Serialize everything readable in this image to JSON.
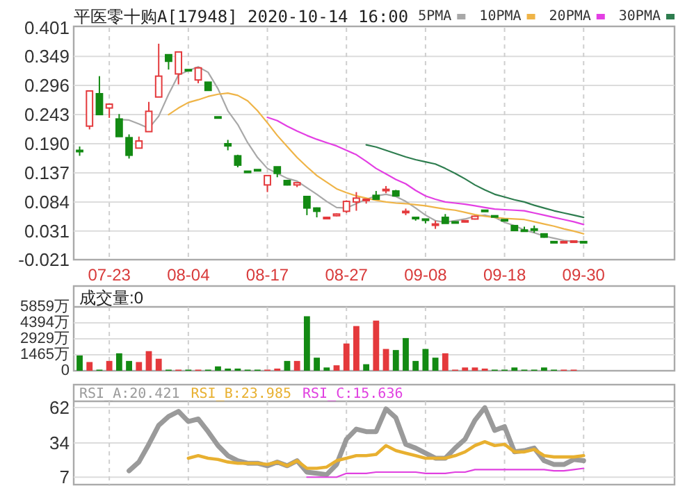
{
  "chart_data": [
    {
      "type": "candlestick",
      "title": "平医零十购A[17948] 2020-10-14 16:00",
      "categories": [
        null,
        null,
        null,
        "07-23",
        null,
        null,
        null,
        null,
        null,
        null,
        null,
        "08-04",
        null,
        null,
        null,
        null,
        null,
        null,
        null,
        "08-17",
        null,
        null,
        null,
        null,
        null,
        null,
        null,
        "08-27",
        null,
        null,
        null,
        null,
        null,
        null,
        null,
        "09-08",
        null,
        null,
        null,
        null,
        null,
        null,
        null,
        "09-18",
        null,
        null,
        null,
        null,
        null,
        null,
        null,
        "09-30"
      ],
      "ohlc": [
        [
          0.178,
          0.185,
          0.168,
          0.176
        ],
        [
          0.222,
          0.286,
          0.216,
          0.286
        ],
        [
          0.281,
          0.313,
          0.243,
          0.243
        ],
        [
          0.255,
          0.262,
          0.237,
          0.262
        ],
        [
          0.235,
          0.244,
          0.203,
          0.203
        ],
        [
          0.201,
          0.207,
          0.163,
          0.169
        ],
        [
          0.182,
          0.203,
          0.182,
          0.195
        ],
        [
          0.212,
          0.266,
          0.212,
          0.249
        ],
        [
          0.275,
          0.372,
          0.275,
          0.313
        ],
        [
          0.352,
          0.352,
          0.325,
          0.34
        ],
        [
          0.317,
          0.357,
          0.298,
          0.357
        ],
        [
          0.325,
          0.325,
          0.323,
          0.323
        ],
        [
          0.306,
          0.328,
          0.3,
          0.328
        ],
        [
          0.302,
          0.302,
          0.287,
          0.287
        ],
        [
          0.239,
          0.239,
          0.238,
          0.238
        ],
        [
          0.19,
          0.197,
          0.178,
          0.186
        ],
        [
          0.168,
          0.17,
          0.147,
          0.151
        ],
        [
          0.14,
          0.14,
          0.139,
          0.139
        ],
        [
          0.143,
          0.143,
          0.142,
          0.142
        ],
        [
          0.115,
          0.132,
          0.102,
          0.132
        ],
        [
          0.148,
          0.148,
          0.129,
          0.136
        ],
        [
          0.123,
          0.124,
          0.114,
          0.115
        ],
        [
          0.115,
          0.119,
          0.111,
          0.119
        ],
        [
          0.094,
          0.094,
          0.06,
          0.073
        ],
        [
          0.073,
          0.074,
          0.056,
          0.067
        ],
        [
          0.055,
          0.057,
          0.054,
          0.056
        ],
        [
          0.059,
          0.063,
          0.058,
          0.062
        ],
        [
          0.067,
          0.087,
          0.064,
          0.085
        ],
        [
          0.084,
          0.102,
          0.068,
          0.091
        ],
        [
          0.088,
          0.089,
          0.081,
          0.089
        ],
        [
          0.096,
          0.104,
          0.089,
          0.089
        ],
        [
          0.105,
          0.113,
          0.1,
          0.107
        ],
        [
          0.104,
          0.106,
          0.095,
          0.095
        ],
        [
          0.065,
          0.072,
          0.06,
          0.067
        ],
        [
          0.056,
          0.056,
          0.05,
          0.055
        ],
        [
          0.053,
          0.053,
          0.045,
          0.051
        ],
        [
          0.042,
          0.05,
          0.035,
          0.044
        ],
        [
          0.056,
          0.062,
          0.045,
          0.045
        ],
        [
          0.048,
          0.048,
          0.047,
          0.047
        ],
        [
          0.049,
          0.05,
          0.047,
          0.05
        ],
        [
          0.053,
          0.059,
          0.052,
          0.058
        ],
        [
          0.069,
          0.069,
          0.068,
          0.068
        ],
        [
          0.059,
          0.059,
          0.058,
          0.058
        ],
        [
          0.052,
          0.052,
          0.051,
          0.051
        ],
        [
          0.041,
          0.041,
          0.032,
          0.032
        ],
        [
          0.033,
          0.039,
          0.031,
          0.032
        ],
        [
          0.035,
          0.041,
          0.028,
          0.034
        ],
        [
          0.026,
          0.026,
          0.019,
          0.02
        ],
        [
          0.012,
          0.012,
          0.011,
          0.011
        ],
        [
          0.011,
          0.012,
          0.011,
          0.012
        ],
        [
          0.012,
          0.013,
          0.012,
          0.013
        ],
        [
          0.012,
          0.012,
          0.011,
          0.011
        ]
      ],
      "colors": [
        "#138a13",
        "#e4393c",
        "#138a13",
        "#e4393c",
        "#138a13",
        "#138a13",
        "#e4393c",
        "#e4393c",
        "#e4393c",
        "#138a13",
        "#e4393c",
        "#138a13",
        "#e4393c",
        "#138a13",
        "#138a13",
        "#138a13",
        "#138a13",
        "#138a13",
        "#138a13",
        "#e4393c",
        "#138a13",
        "#138a13",
        "#e4393c",
        "#138a13",
        "#138a13",
        "#e4393c",
        "#e4393c",
        "#e4393c",
        "#e4393c",
        "#e4393c",
        "#138a13",
        "#e4393c",
        "#138a13",
        "#e4393c",
        "#138a13",
        "#138a13",
        "#e4393c",
        "#138a13",
        "#138a13",
        "#e4393c",
        "#e4393c",
        "#138a13",
        "#138a13",
        "#138a13",
        "#138a13",
        "#138a13",
        "#138a13",
        "#138a13",
        "#138a13",
        "#e4393c",
        "#e4393c",
        "#138a13"
      ],
      "series": [
        {
          "name": "5PMA",
          "type": "line",
          "color": "#a8a8a8",
          "values": [
            null,
            null,
            null,
            null,
            0.234,
            0.233,
            0.226,
            0.218,
            0.24,
            0.28,
            0.315,
            0.323,
            0.33,
            0.32,
            0.29,
            0.25,
            0.225,
            0.192,
            0.165,
            0.145,
            0.136,
            0.127,
            0.122,
            0.11,
            0.098,
            0.085,
            0.074,
            0.073,
            0.081,
            0.089,
            0.095,
            0.098,
            0.094,
            0.085,
            0.073,
            0.06,
            0.05,
            0.047,
            0.05,
            0.053,
            0.058,
            0.06,
            0.056,
            0.047,
            0.041,
            0.033,
            0.028,
            0.022,
            0.018,
            0.014,
            0.012,
            0.011
          ]
        },
        {
          "name": "10PMA",
          "type": "line",
          "color": "#efb447",
          "values": [
            null,
            null,
            null,
            null,
            null,
            null,
            null,
            null,
            null,
            0.243,
            0.255,
            0.265,
            0.27,
            0.276,
            0.28,
            0.282,
            0.278,
            0.268,
            0.25,
            0.228,
            0.205,
            0.185,
            0.165,
            0.148,
            0.132,
            0.12,
            0.108,
            0.101,
            0.095,
            0.091,
            0.087,
            0.084,
            0.082,
            0.081,
            0.079,
            0.077,
            0.074,
            0.071,
            0.069,
            0.065,
            0.061,
            0.058,
            0.056,
            0.054,
            0.053,
            0.052,
            0.048,
            0.044,
            0.04,
            0.035,
            0.031,
            0.026
          ]
        },
        {
          "name": "20PMA",
          "type": "line",
          "color": "#e33fe3",
          "values": [
            null,
            null,
            null,
            null,
            null,
            null,
            null,
            null,
            null,
            null,
            null,
            null,
            null,
            null,
            null,
            null,
            null,
            null,
            null,
            0.238,
            0.232,
            0.222,
            0.213,
            0.205,
            0.198,
            0.192,
            0.186,
            0.178,
            0.17,
            0.158,
            0.145,
            0.135,
            0.125,
            0.117,
            0.105,
            0.095,
            0.089,
            0.084,
            0.082,
            0.08,
            0.077,
            0.074,
            0.071,
            0.07,
            0.069,
            0.068,
            0.064,
            0.06,
            0.056,
            0.052,
            0.048,
            0.043
          ]
        },
        {
          "name": "30PMA",
          "type": "line",
          "color": "#2e7d4f",
          "values": [
            null,
            null,
            null,
            null,
            null,
            null,
            null,
            null,
            null,
            null,
            null,
            null,
            null,
            null,
            null,
            null,
            null,
            null,
            null,
            null,
            null,
            null,
            null,
            null,
            null,
            null,
            null,
            null,
            null,
            0.188,
            0.184,
            0.178,
            0.172,
            0.166,
            0.161,
            0.157,
            0.153,
            0.145,
            0.136,
            0.126,
            0.115,
            0.106,
            0.098,
            0.093,
            0.088,
            0.084,
            0.078,
            0.073,
            0.068,
            0.064,
            0.06,
            0.056
          ]
        }
      ],
      "ylim": [
        -0.021,
        0.401
      ],
      "yticks": [
        {
          "value": 0.401,
          "label": "0.401"
        },
        {
          "value": 0.349,
          "label": "0.349"
        },
        {
          "value": 0.296,
          "label": "0.296"
        },
        {
          "value": 0.243,
          "label": "0.243"
        },
        {
          "value": 0.19,
          "label": "0.190"
        },
        {
          "value": 0.137,
          "label": "0.137"
        },
        {
          "value": 0.084,
          "label": "0.084"
        },
        {
          "value": 0.031,
          "label": "0.031"
        },
        {
          "value": -0.021,
          "label": "-0.021"
        }
      ],
      "grid": true,
      "legend": "top right"
    },
    {
      "type": "bar",
      "categories": [
        null,
        null,
        null,
        null,
        null,
        null,
        null,
        null,
        null,
        null,
        null,
        null,
        null,
        null,
        null,
        null,
        null,
        null,
        null,
        null,
        null,
        null,
        null,
        null,
        null,
        null,
        null,
        null,
        null,
        null,
        null,
        null,
        null,
        null,
        null,
        null,
        null,
        null,
        null,
        null,
        null,
        null,
        null,
        null,
        null,
        null,
        null,
        null,
        null,
        null,
        null,
        null
      ],
      "values": [
        1400,
        800,
        100,
        900,
        1600,
        900,
        800,
        1800,
        1100,
        100,
        100,
        100,
        100,
        100,
        400,
        200,
        200,
        100,
        100,
        100,
        200,
        900,
        900,
        5000,
        1200,
        300,
        500,
        2500,
        4100,
        600,
        4600,
        2000,
        1900,
        3000,
        900,
        2000,
        1200,
        1600,
        100,
        300,
        300,
        200,
        100,
        100,
        300,
        100,
        100,
        300,
        100,
        100,
        100,
        0
      ],
      "colors": [
        "#138a13",
        "#e4393c",
        "#138a13",
        "#e4393c",
        "#138a13",
        "#138a13",
        "#e4393c",
        "#e4393c",
        "#e4393c",
        "#138a13",
        "#e4393c",
        "#138a13",
        "#e4393c",
        "#138a13",
        "#138a13",
        "#138a13",
        "#138a13",
        "#138a13",
        "#138a13",
        "#e4393c",
        "#e4393c",
        "#138a13",
        "#e4393c",
        "#138a13",
        "#138a13",
        "#138a13",
        "#e4393c",
        "#e4393c",
        "#e4393c",
        "#138a13",
        "#e4393c",
        "#e4393c",
        "#138a13",
        "#138a13",
        "#138a13",
        "#138a13",
        "#138a13",
        "#e4393c",
        "#e4393c",
        "#e4393c",
        "#e4393c",
        "#e4393c",
        "#138a13",
        "#138a13",
        "#138a13",
        "#138a13",
        "#138a13",
        "#138a13",
        "#138a13",
        "#e4393c",
        "#e4393c",
        "#138a13"
      ],
      "ylim": [
        0,
        5859
      ],
      "yticks": [
        {
          "value": 0,
          "label": "0"
        },
        {
          "value": 1465,
          "label": "1465万"
        },
        {
          "value": 2929,
          "label": "2929万"
        },
        {
          "value": 4394,
          "label": "4394万"
        },
        {
          "value": 5859,
          "label": "5859万"
        }
      ],
      "annotations": [
        "成交量:0"
      ],
      "grid": true,
      "tick_labels": "y"
    },
    {
      "type": "line",
      "categories": [
        null,
        null,
        null,
        null,
        null,
        null,
        null,
        null,
        null,
        null,
        null,
        null,
        null,
        null,
        null,
        null,
        null,
        null,
        null,
        null,
        null,
        null,
        null,
        null,
        null,
        null,
        null,
        null,
        null,
        null,
        null,
        null,
        null,
        null,
        null,
        null,
        null,
        null,
        null,
        null,
        null,
        null,
        null,
        null,
        null,
        null,
        null,
        null,
        null,
        null,
        null,
        null
      ],
      "series": [
        {
          "color": "#9a9a9a",
          "values": [
            null,
            null,
            null,
            null,
            null,
            12,
            19,
            33,
            48,
            55,
            59,
            51,
            53,
            43,
            32,
            24,
            20,
            18,
            18,
            16,
            19,
            16,
            20,
            11,
            10,
            9,
            17,
            37,
            45,
            43,
            43,
            61,
            54,
            33,
            30,
            26,
            22,
            22,
            30,
            37,
            52,
            62,
            44,
            47,
            27,
            28,
            30,
            20,
            17,
            17,
            21,
            20
          ]
        },
        {
          "color": "#e8b030",
          "values": [
            null,
            null,
            null,
            null,
            null,
            null,
            null,
            null,
            null,
            null,
            null,
            22,
            24,
            22,
            21,
            19,
            18,
            18,
            18,
            17,
            19,
            16,
            20,
            14,
            14,
            15,
            20,
            22,
            24,
            24,
            25,
            32,
            28,
            26,
            24,
            22,
            22,
            22,
            24,
            27,
            32,
            35,
            32,
            33,
            27,
            27,
            29,
            24,
            23,
            23,
            23,
            24
          ]
        },
        {
          "color": "#e040e0",
          "values": [
            null,
            null,
            null,
            null,
            null,
            null,
            null,
            null,
            null,
            null,
            null,
            null,
            null,
            null,
            null,
            null,
            null,
            null,
            null,
            null,
            null,
            null,
            null,
            7,
            7,
            7,
            7,
            10,
            10,
            10,
            11,
            11,
            11,
            11,
            11,
            10,
            10,
            10,
            11,
            11,
            13,
            13,
            13,
            13,
            13,
            13,
            13,
            13,
            12,
            12,
            13,
            14
          ]
        }
      ],
      "ylim": [
        0,
        67
      ],
      "yticks": [
        7,
        34,
        62
      ],
      "annotations": [
        "RSI_A:20.421",
        "RSI_B:23.985",
        "RSI_C:15.636"
      ],
      "grid": true,
      "tick_labels": "y"
    }
  ]
}
